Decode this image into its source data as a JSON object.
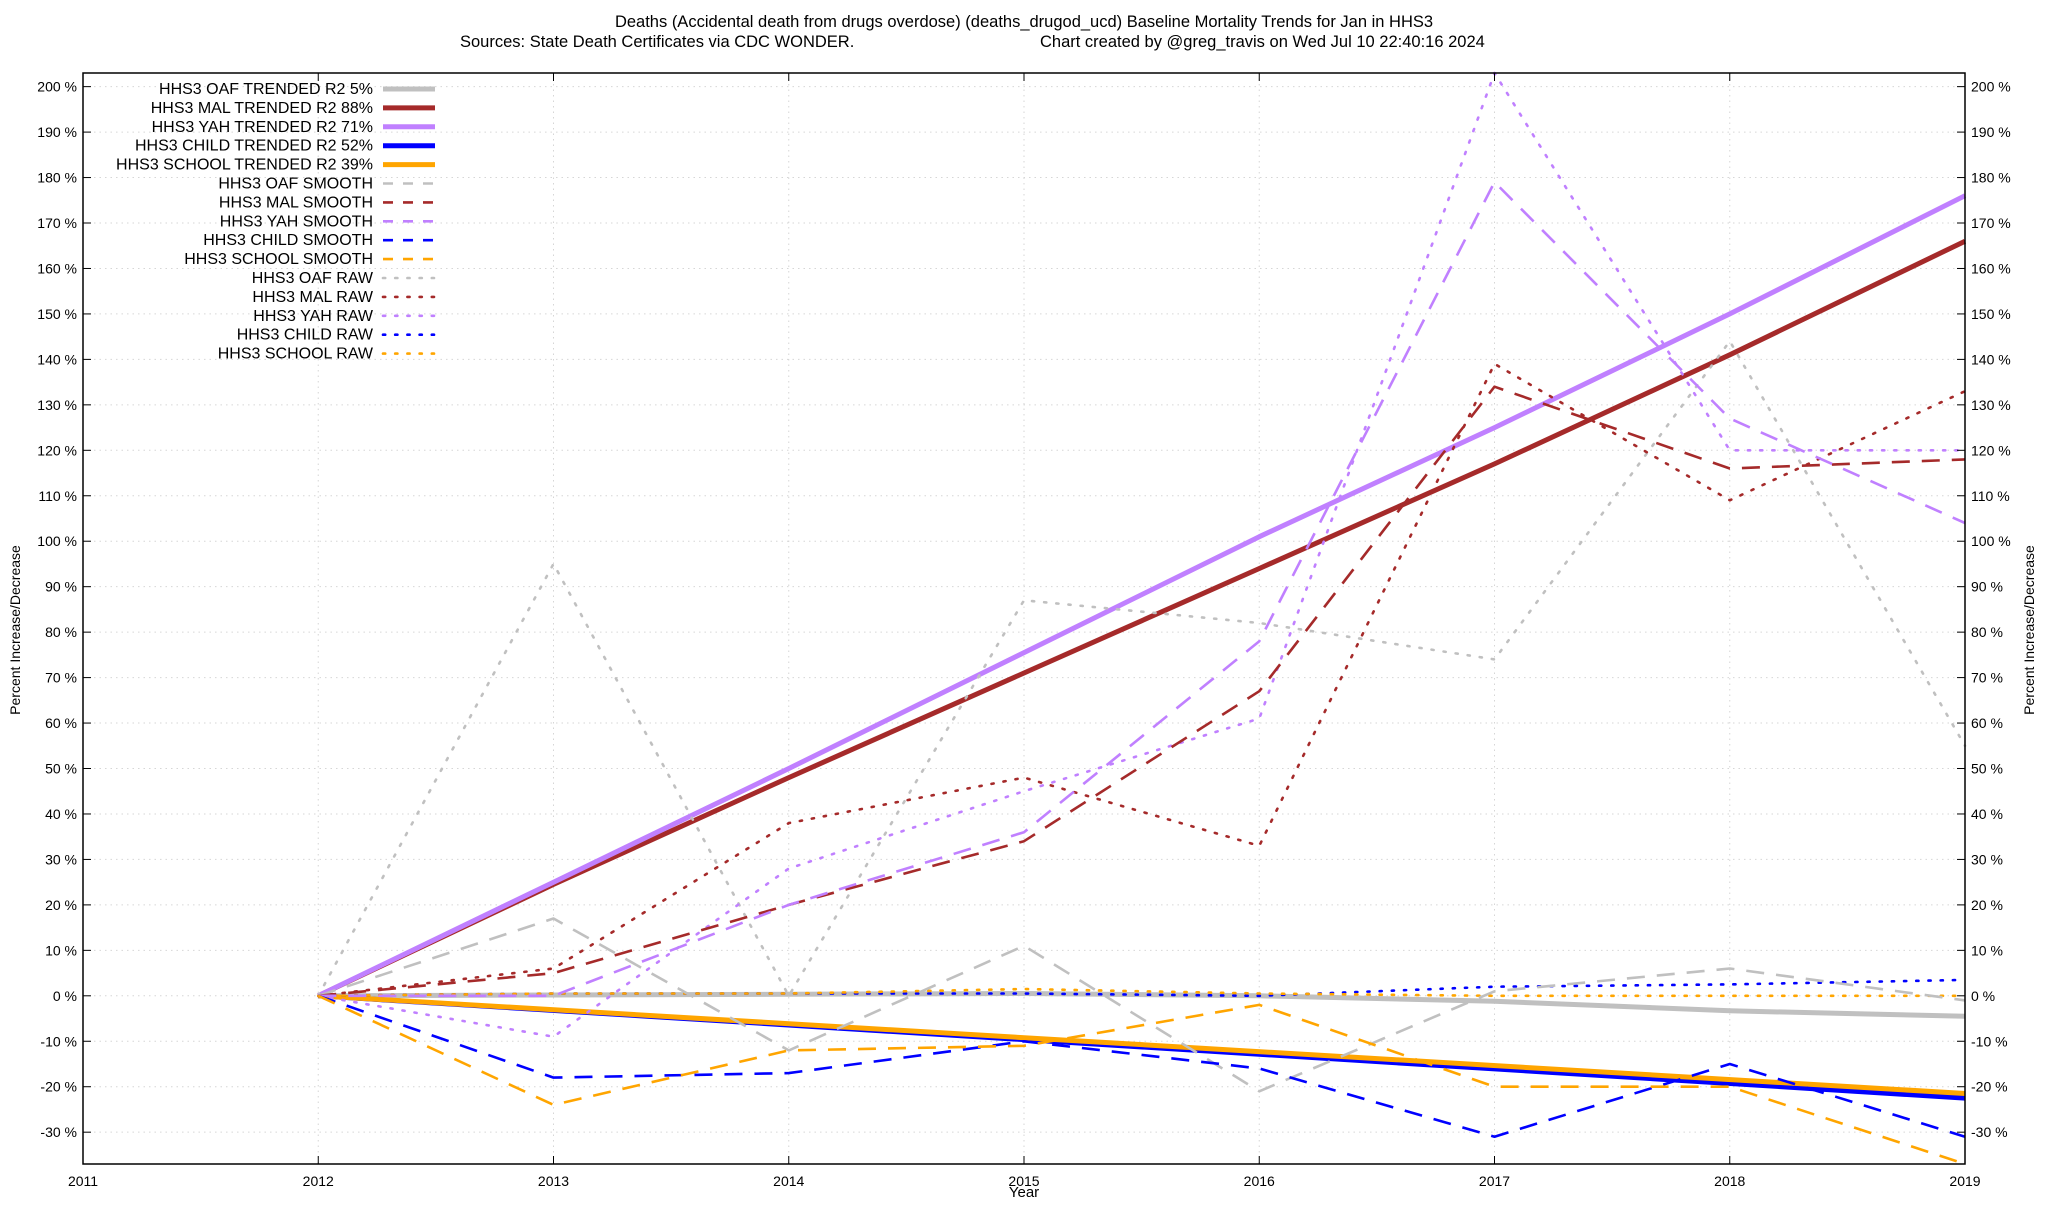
{
  "chart_data": {
    "type": "line",
    "title_line1": "Deaths (Accidental death from drugs overdose) (deaths_drugod_ucd)  Baseline Mortality Trends for Jan in HHS3",
    "title_line2_left": "Sources: State Death Certificates via CDC WONDER.",
    "title_line2_right": "Chart created by @greg_travis on Wed Jul 10 22:40:16 2024",
    "xlabel": "Year",
    "ylabel_left": "Percent Increase/Decrease",
    "ylabel_right": "Percent Increase/Decrease",
    "xlim": [
      2011,
      2019
    ],
    "ylim": [
      -37,
      203
    ],
    "x_ticks": [
      2011,
      2012,
      2013,
      2014,
      2015,
      2016,
      2017,
      2018,
      2019
    ],
    "x_tick_labels": [
      "2011",
      "2012",
      "2013",
      "2014",
      "2015",
      "2016",
      "2017",
      "2018",
      "2019"
    ],
    "y_ticks": [
      -30,
      -20,
      -10,
      0,
      10,
      20,
      30,
      40,
      50,
      60,
      70,
      80,
      90,
      100,
      110,
      120,
      130,
      140,
      150,
      160,
      170,
      180,
      190,
      200
    ],
    "y_tick_labels": [
      "-30 %",
      "-20 %",
      "-10 %",
      "0 %",
      "10 %",
      "20 %",
      "30 %",
      "40 %",
      "50 %",
      "60 %",
      "70 %",
      "80 %",
      "90 %",
      "100 %",
      "110 %",
      "120 %",
      "130 %",
      "140 %",
      "150 %",
      "160 %",
      "170 %",
      "180 %",
      "190 %",
      "200 %"
    ],
    "grid": true,
    "legend_position": "top-left",
    "colors": {
      "oaf": "#c0c0c0",
      "mal": "#a52a2a",
      "yah": "#c080ff",
      "child": "#0000ff",
      "school": "#ffa500"
    },
    "series": [
      {
        "name": "HHS3 OAF TRENDED R2",
        "r2": "5%",
        "style": "trend",
        "color_key": "oaf",
        "x": [
          2012,
          2015,
          2016,
          2017,
          2018,
          2019
        ],
        "y": [
          0,
          0.5,
          0,
          -1.2,
          -3.3,
          -4.5
        ]
      },
      {
        "name": "HHS3 MAL TRENDED R2",
        "r2": "88%",
        "style": "trend",
        "color_key": "mal",
        "x": [
          2012,
          2013,
          2014,
          2015,
          2016,
          2017,
          2018,
          2019
        ],
        "y": [
          0,
          24.5,
          48,
          71,
          94,
          117,
          141,
          166
        ]
      },
      {
        "name": "HHS3 YAH TRENDED R2",
        "r2": "71%",
        "style": "trend",
        "color_key": "yah",
        "x": [
          2012,
          2013,
          2014,
          2015,
          2016,
          2017,
          2018,
          2019
        ],
        "y": [
          0,
          25,
          50,
          75.5,
          101,
          125,
          150,
          176
        ]
      },
      {
        "name": "HHS3 CHILD TRENDED R2",
        "r2": "52%",
        "style": "trend",
        "color_key": "child",
        "x": [
          2012,
          2019
        ],
        "y": [
          0,
          -22.5
        ]
      },
      {
        "name": "HHS3 SCHOOL TRENDED R2",
        "r2": "39%",
        "style": "trend",
        "color_key": "school",
        "x": [
          2012,
          2019
        ],
        "y": [
          0,
          -21.5
        ]
      },
      {
        "name": "HHS3 OAF SMOOTH",
        "style": "smooth",
        "color_key": "oaf",
        "x": [
          2012,
          2013,
          2014,
          2015,
          2016,
          2017,
          2018,
          2019
        ],
        "y": [
          0,
          17,
          -12,
          11,
          -21,
          1,
          6,
          -1
        ]
      },
      {
        "name": "HHS3 MAL SMOOTH",
        "style": "smooth",
        "color_key": "mal",
        "x": [
          2012,
          2013,
          2014,
          2015,
          2016,
          2017,
          2018,
          2019
        ],
        "y": [
          0,
          5,
          20,
          34,
          67,
          134,
          116,
          118
        ]
      },
      {
        "name": "HHS3 YAH SMOOTH",
        "style": "smooth",
        "color_key": "yah",
        "x": [
          2012,
          2013,
          2014,
          2015,
          2016,
          2017,
          2018,
          2019
        ],
        "y": [
          0,
          0,
          20,
          36,
          78,
          179,
          127,
          104
        ]
      },
      {
        "name": "HHS3 CHILD SMOOTH",
        "style": "smooth",
        "color_key": "child",
        "x": [
          2012,
          2013,
          2014,
          2015,
          2016,
          2017,
          2018,
          2019
        ],
        "y": [
          0,
          -18,
          -17,
          -10,
          -16,
          -31,
          -15,
          -31
        ]
      },
      {
        "name": "HHS3 SCHOOL SMOOTH",
        "style": "smooth",
        "color_key": "school",
        "x": [
          2012,
          2013,
          2014,
          2015,
          2016,
          2017,
          2018,
          2019
        ],
        "y": [
          0,
          -24,
          -12,
          -11,
          -2,
          -20,
          -20,
          -37
        ]
      },
      {
        "name": "HHS3 OAF RAW",
        "style": "raw",
        "color_key": "oaf",
        "x": [
          2012,
          2013,
          2014,
          2015,
          2016,
          2017,
          2018,
          2019
        ],
        "y": [
          0,
          95,
          0,
          87,
          82,
          74,
          144,
          55
        ]
      },
      {
        "name": "HHS3 MAL RAW",
        "style": "raw",
        "color_key": "mal",
        "x": [
          2012,
          2013,
          2014,
          2015,
          2016,
          2017,
          2018,
          2019
        ],
        "y": [
          0,
          6,
          38,
          48,
          33,
          139,
          109,
          133
        ]
      },
      {
        "name": "HHS3 YAH RAW",
        "style": "raw",
        "color_key": "yah",
        "x": [
          2012,
          2013,
          2014,
          2015,
          2016,
          2017,
          2018,
          2019
        ],
        "y": [
          0,
          -9,
          28,
          45,
          61,
          203,
          120,
          120
        ]
      },
      {
        "name": "HHS3 CHILD RAW",
        "style": "raw",
        "color_key": "child",
        "x": [
          2012,
          2013,
          2014,
          2015,
          2016,
          2017,
          2018,
          2019
        ],
        "y": [
          0,
          0.5,
          0.5,
          0.5,
          0,
          2,
          2.5,
          3.5
        ]
      },
      {
        "name": "HHS3 SCHOOL RAW",
        "style": "raw",
        "color_key": "school",
        "x": [
          2012,
          2013,
          2014,
          2015,
          2016,
          2017,
          2018,
          2019
        ],
        "y": [
          0,
          0.5,
          0.5,
          1.5,
          0.5,
          0,
          0,
          0
        ]
      }
    ]
  }
}
